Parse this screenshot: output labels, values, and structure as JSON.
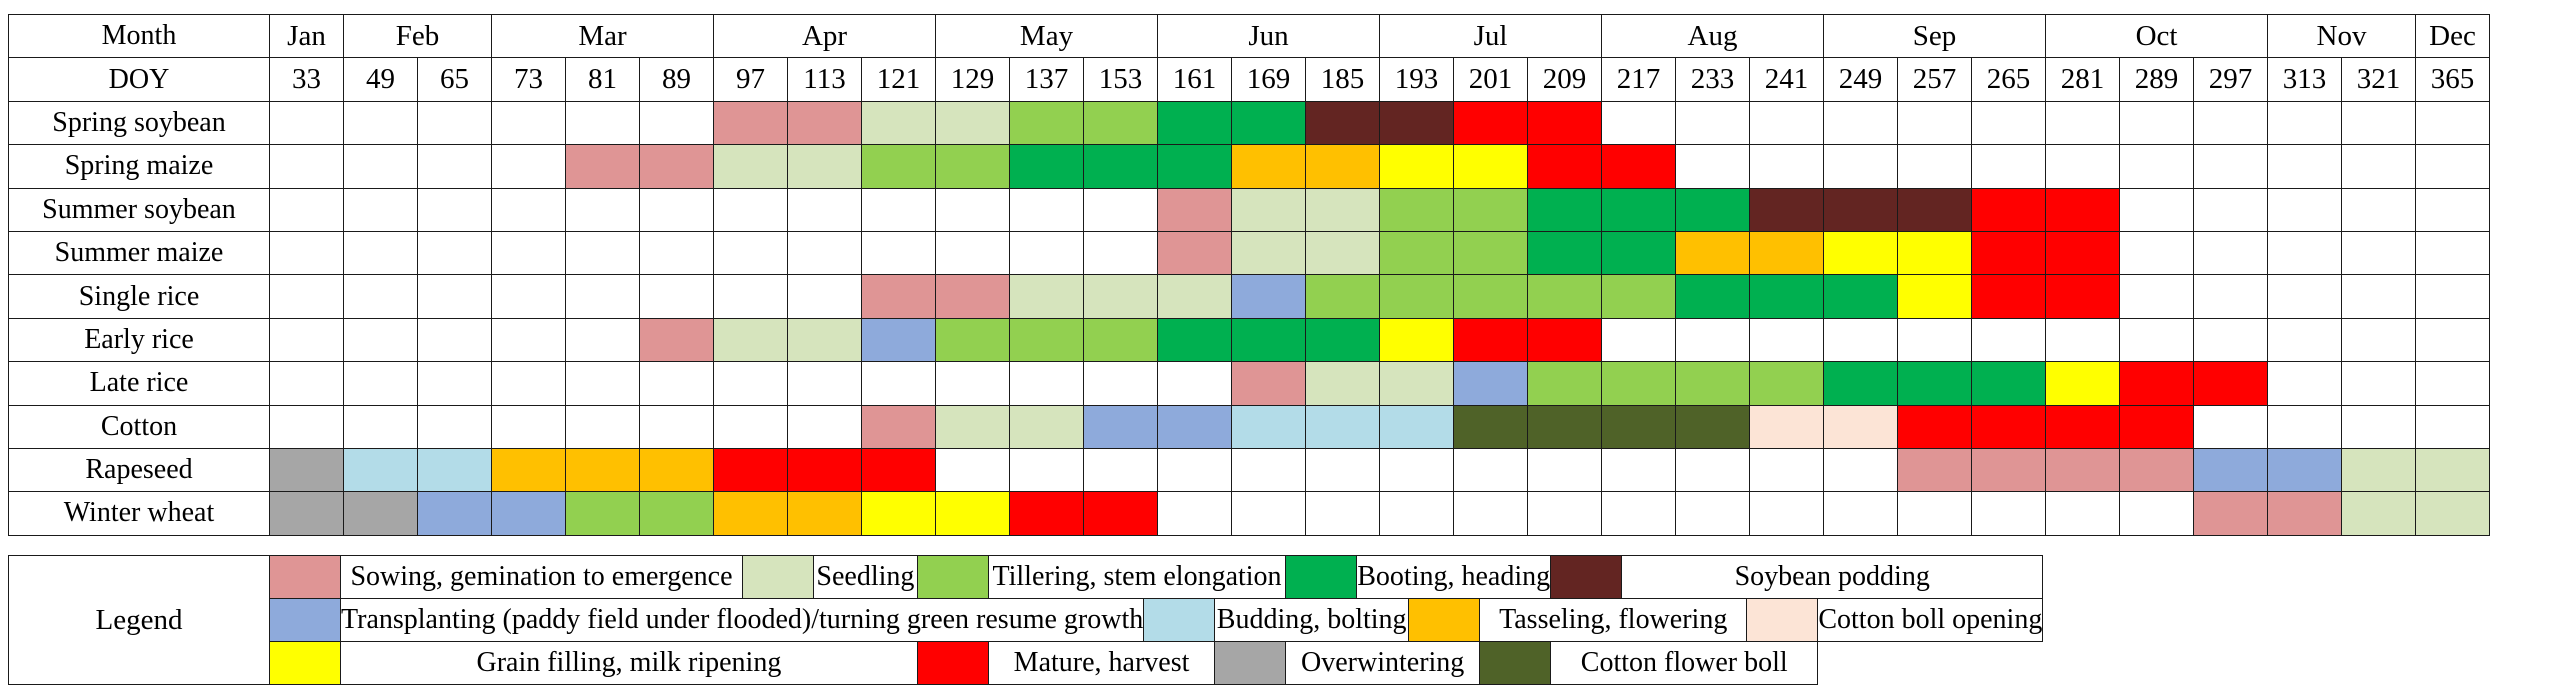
{
  "colors": {
    "S": "#df9595",
    "D": "#d6e4bd",
    "T": "#92d050",
    "B": "#00b050",
    "P": "#632522",
    "R": "#8eaadb",
    "U": "#b3dce8",
    "F": "#ffc000",
    "O": "#fce4d6",
    "G": "#ffff00",
    "M": "#ff0000",
    "W": "#a6a6a6",
    "C": "#4f6228",
    "N": "#ffffff"
  },
  "calendar": {
    "month_header": "Month",
    "doy_header": "DOY",
    "months": [
      {
        "label": "Jan",
        "span": 1
      },
      {
        "label": "Feb",
        "span": 2
      },
      {
        "label": "Mar",
        "span": 3
      },
      {
        "label": "Apr",
        "span": 3
      },
      {
        "label": "May",
        "span": 3
      },
      {
        "label": "Jun",
        "span": 3
      },
      {
        "label": "Jul",
        "span": 3
      },
      {
        "label": "Aug",
        "span": 3
      },
      {
        "label": "Sep",
        "span": 3
      },
      {
        "label": "Oct",
        "span": 3
      },
      {
        "label": "Nov",
        "span": 2
      },
      {
        "label": "Dec",
        "span": 1
      }
    ],
    "doy": [
      "33",
      "49",
      "65",
      "73",
      "81",
      "89",
      "97",
      "113",
      "121",
      "129",
      "137",
      "153",
      "161",
      "169",
      "185",
      "193",
      "201",
      "209",
      "217",
      "233",
      "241",
      "249",
      "257",
      "265",
      "281",
      "289",
      "297",
      "313",
      "321",
      "365"
    ],
    "crops": [
      {
        "name": "Spring soybean",
        "stages": "NNNNNNSSDDTTBBPPMMNNNNNNNNNNNN"
      },
      {
        "name": "Spring maize",
        "stages": "NNNNSSDDTTBBBFFGGMMNNNNNNNNNNN"
      },
      {
        "name": "Summer soybean",
        "stages": "NNNNNNNNNNNNSDDTTBBBPPPMMNNNNN"
      },
      {
        "name": "Summer maize",
        "stages": "NNNNNNNNNNNNSDDTTBBFFGGMMNNNNN"
      },
      {
        "name": "Single rice",
        "stages": "NNNNNNNNSSDDDRTTTTTBBBGMMNNNNN"
      },
      {
        "name": "Early rice",
        "stages": "NNNNNSDDRTTTBBBGMMNNNNNNNNNNNN"
      },
      {
        "name": "Late rice",
        "stages": "NNNNNNNNNNNNNSDDRTTTTBBBGMMNNN"
      },
      {
        "name": "Cotton",
        "stages": "NNNNNNNNSDDRRUUUCCCCOOMMMMNNNN"
      },
      {
        "name": "Rapeseed",
        "stages": "WUUFFFMMMNNNNNNNNNNNNNSSSSRRDD"
      },
      {
        "name": "Winter wheat",
        "stages": "WWRRTTFFGGMMNNNNNNNNNNNNNNSSDD"
      }
    ]
  },
  "legend": {
    "title": "Legend",
    "rows": [
      [
        {
          "code": "S",
          "label": "Sowing, gemination to emergence",
          "span": 5
        },
        {
          "code": "D",
          "label": "Seedling",
          "span": 4
        },
        {
          "code": "T",
          "label": "Tillering, stem elongation",
          "span": 6
        },
        {
          "code": "B",
          "label": "Booting, heading",
          "span": 5
        },
        {
          "code": "P",
          "label": "Soybean podding",
          "span": 5
        }
      ],
      [
        {
          "code": "R",
          "label": "Transplanting (paddy field under flooded)/turning green resume growth",
          "span": 15
        },
        {
          "code": "U",
          "label": "Budding, bolting",
          "span": 5
        },
        {
          "code": "F",
          "label": "Tasseling, flowering",
          "span": 5
        },
        {
          "code": "O",
          "label": "Cotton boll opening",
          "span": 5
        }
      ],
      [
        {
          "code": "G",
          "label": "Grain filling, milk ripening",
          "span": 10
        },
        {
          "code": "M",
          "label": "Mature, harvest",
          "span": 5
        },
        {
          "code": "W",
          "label": "Overwintering",
          "span": 5
        },
        {
          "code": "C",
          "label": "Cotton flower boll",
          "span": 5
        }
      ]
    ]
  }
}
